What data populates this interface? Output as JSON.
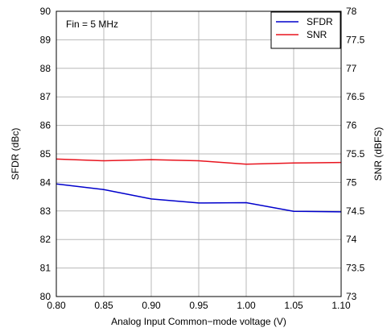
{
  "chart_data": {
    "type": "line",
    "title": "",
    "annotation": "Fin = 5 MHz",
    "xlabel": "Analog Input Common−mode voltage (V)",
    "ylabel_left": "SFDR (dBc)",
    "ylabel_right": "SNR (dBFS)",
    "x": [
      0.8,
      0.85,
      0.9,
      0.95,
      1.0,
      1.05,
      1.1
    ],
    "x_ticks": [
      "0.80",
      "0.85",
      "0.90",
      "0.95",
      "1.00",
      "1.05",
      "1.10"
    ],
    "xlim": [
      0.8,
      1.1
    ],
    "ylim_left": [
      80,
      90
    ],
    "ylim_right": [
      73,
      78
    ],
    "y_ticks_left": [
      "80",
      "81",
      "82",
      "83",
      "84",
      "85",
      "86",
      "87",
      "88",
      "89",
      "90"
    ],
    "y_ticks_right": [
      "73",
      "73.5",
      "74",
      "74.5",
      "75",
      "75.5",
      "76",
      "76.5",
      "77",
      "77.5",
      "78"
    ],
    "grid": true,
    "legend_position": "top-right",
    "series": [
      {
        "name": "SFDR",
        "axis": "left",
        "color": "#0000cc",
        "values": [
          83.95,
          83.75,
          83.42,
          83.28,
          83.29,
          82.99,
          82.97
        ]
      },
      {
        "name": "SNR",
        "axis": "right",
        "color": "#e8141e",
        "values": [
          75.41,
          75.38,
          75.4,
          75.38,
          75.32,
          75.34,
          75.35
        ]
      }
    ]
  }
}
